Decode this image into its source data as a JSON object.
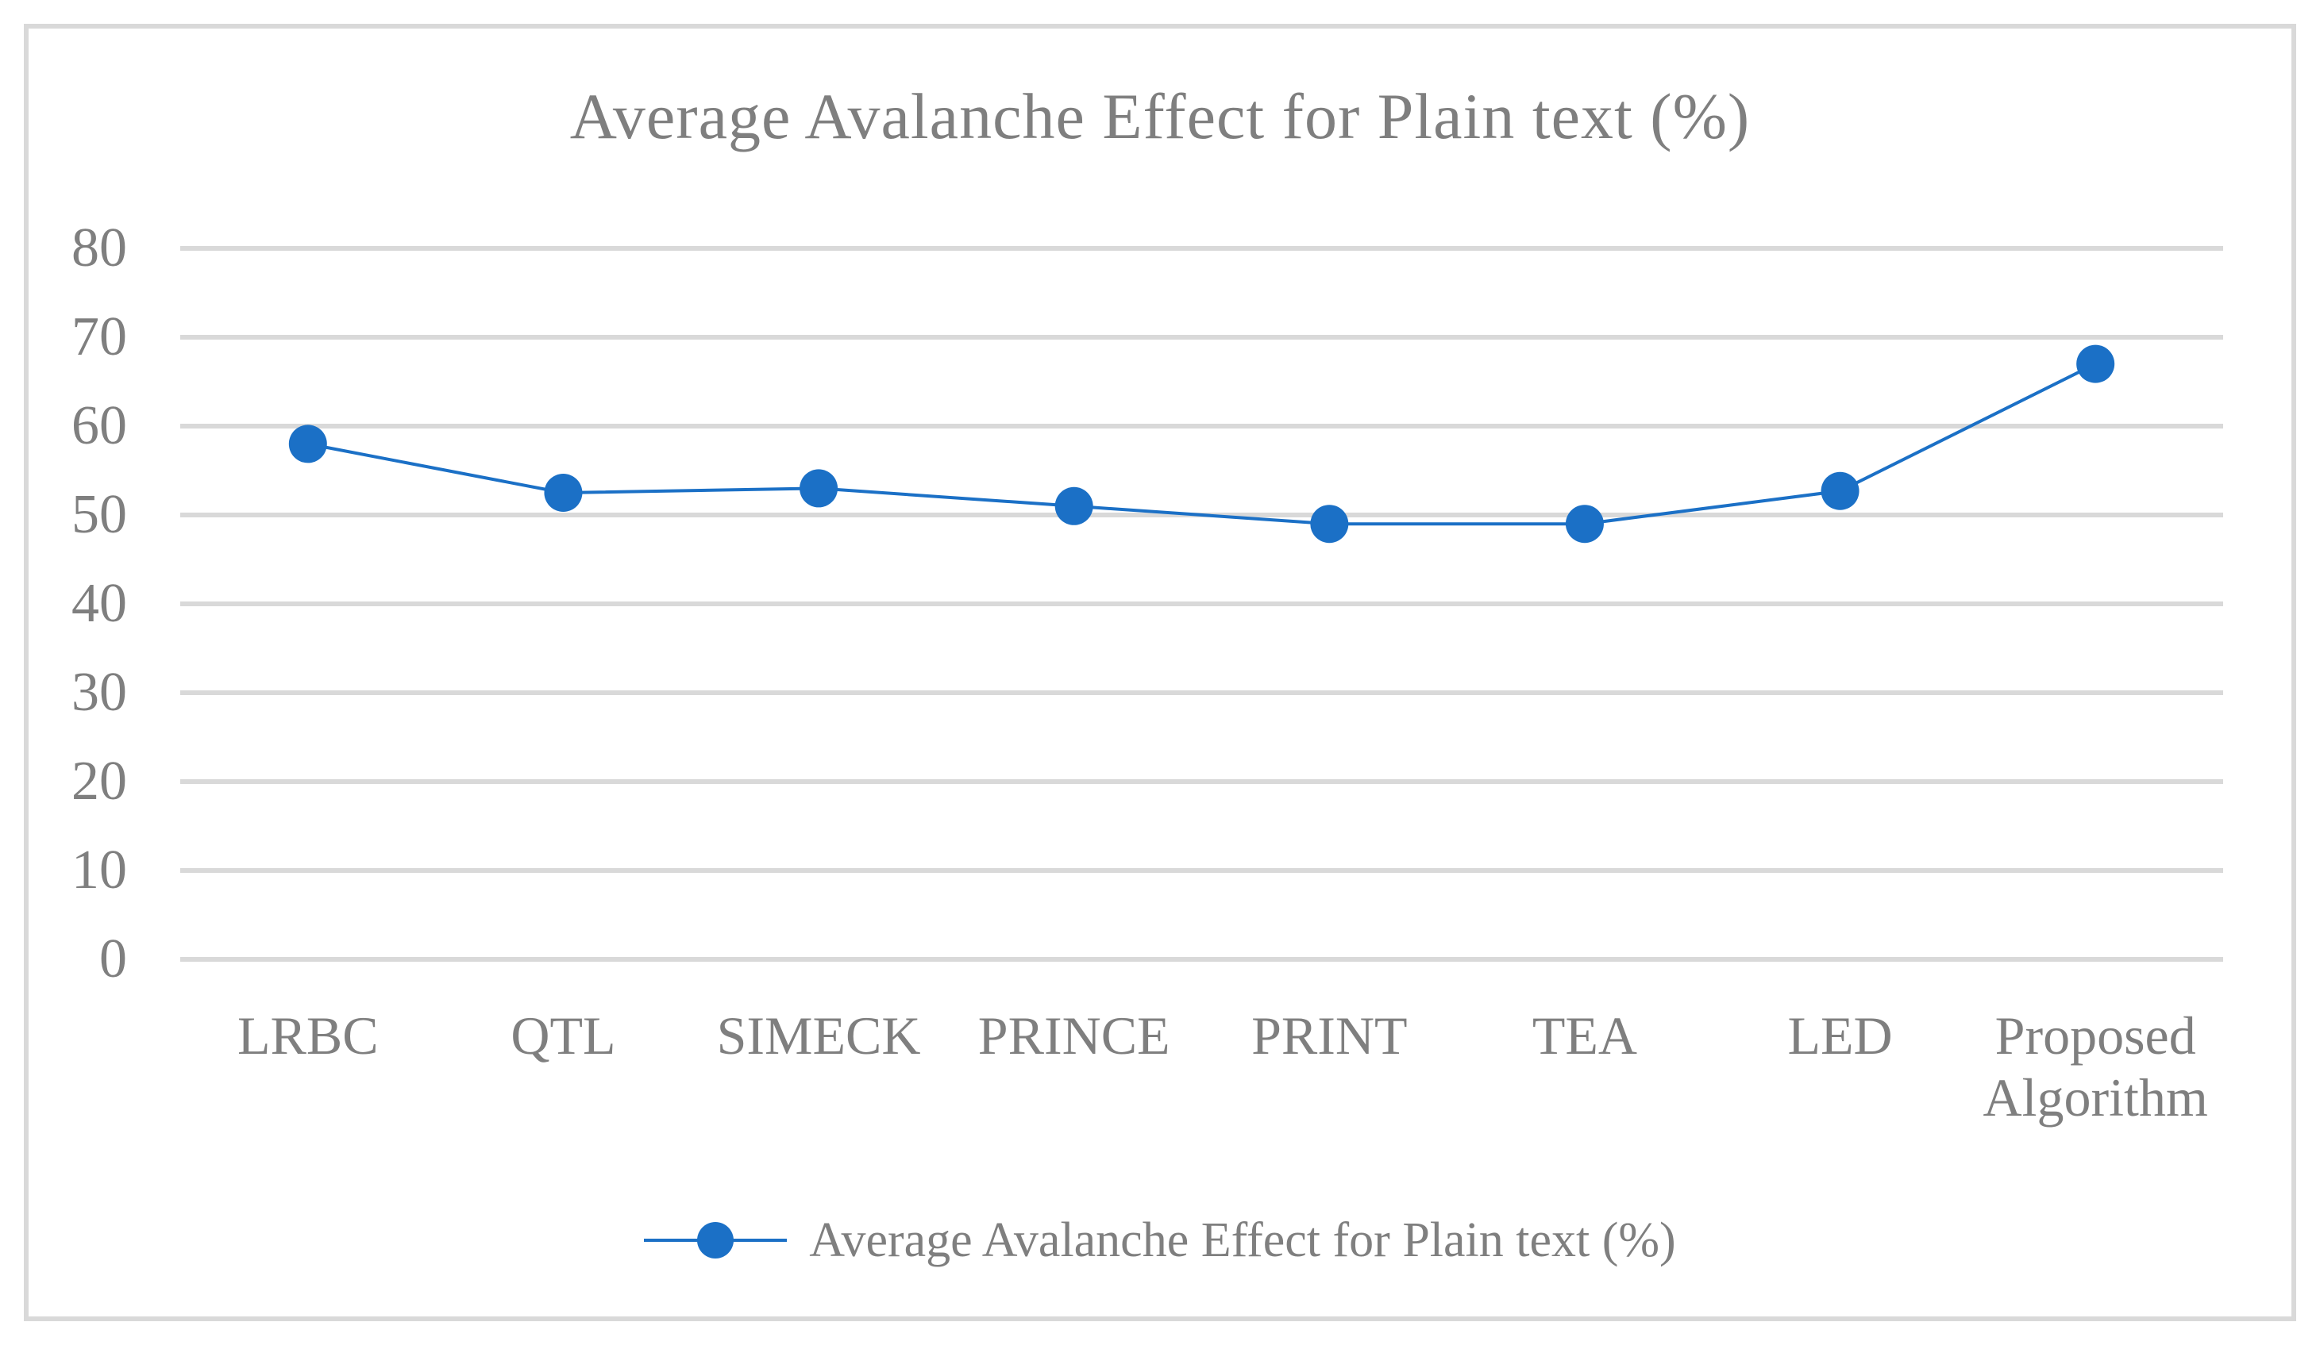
{
  "chart_data": {
    "type": "line",
    "title": "Average Avalanche Effect for Plain text (%)",
    "categories": [
      "LRBC",
      "QTL",
      "SIMECK",
      "PRINCE",
      "PRINT",
      "TEA",
      "LED",
      "Proposed Algorithm"
    ],
    "series": [
      {
        "name": "Average Avalanche Effect for Plain text (%)",
        "values": [
          58,
          52.5,
          53,
          51,
          49,
          49,
          52.7,
          67
        ]
      }
    ],
    "xlabel": "",
    "ylabel": "",
    "ylim": [
      0,
      80
    ],
    "yticks": [
      0,
      10,
      20,
      30,
      40,
      50,
      60,
      70,
      80
    ],
    "grid": true,
    "legend_position": "bottom",
    "marker": "circle"
  },
  "legend": {
    "label": "Average Avalanche Effect for Plain text (%)"
  },
  "colors": {
    "series": "#1B70C6",
    "gridline": "#D9D9D9",
    "text": "#7F7F7F",
    "frame_border": "#D9D9D9",
    "background": "#FFFFFF"
  }
}
